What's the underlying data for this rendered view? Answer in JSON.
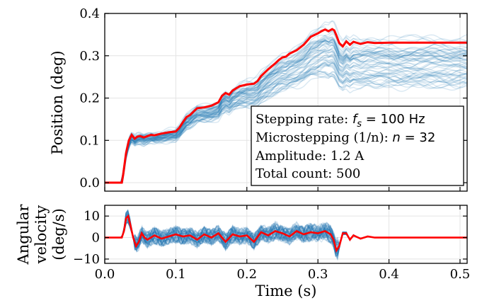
{
  "chart_data": [
    {
      "type": "line",
      "ylabel": "Position (deg)",
      "xlim": [
        0.0,
        0.51
      ],
      "ylim": [
        -0.02,
        0.4
      ],
      "yticks": [
        "0.0",
        "0.1",
        "0.2",
        "0.3",
        "0.4"
      ],
      "grid": true,
      "ensemble": {
        "color": "#1f77b4",
        "trace_count_drawn": 60,
        "final_band": [
          0.22,
          0.345
        ]
      },
      "highlight_series": {
        "color": "#ff0000",
        "x": [
          0,
          0.024,
          0.026,
          0.03,
          0.034,
          0.038,
          0.042,
          0.046,
          0.05,
          0.055,
          0.06,
          0.065,
          0.07,
          0.08,
          0.09,
          0.1,
          0.105,
          0.11,
          0.115,
          0.12,
          0.125,
          0.13,
          0.14,
          0.15,
          0.16,
          0.165,
          0.17,
          0.175,
          0.18,
          0.19,
          0.2,
          0.21,
          0.215,
          0.22,
          0.23,
          0.24,
          0.245,
          0.25,
          0.255,
          0.26,
          0.27,
          0.28,
          0.29,
          0.3,
          0.305,
          0.31,
          0.315,
          0.32,
          0.323,
          0.326,
          0.33,
          0.335,
          0.34,
          0.345,
          0.35,
          0.36,
          0.37,
          0.38,
          0.4,
          0.45,
          0.51
        ],
        "y": [
          0,
          0,
          0.02,
          0.07,
          0.1,
          0.113,
          0.104,
          0.109,
          0.11,
          0.107,
          0.11,
          0.113,
          0.112,
          0.116,
          0.119,
          0.121,
          0.13,
          0.143,
          0.155,
          0.16,
          0.168,
          0.176,
          0.178,
          0.182,
          0.19,
          0.205,
          0.212,
          0.208,
          0.218,
          0.228,
          0.232,
          0.234,
          0.24,
          0.252,
          0.268,
          0.282,
          0.29,
          0.296,
          0.298,
          0.305,
          0.313,
          0.326,
          0.345,
          0.353,
          0.358,
          0.362,
          0.358,
          0.363,
          0.36,
          0.348,
          0.33,
          0.322,
          0.334,
          0.326,
          0.333,
          0.328,
          0.332,
          0.33,
          0.331,
          0.331,
          0.331
        ]
      },
      "annotation": {
        "line1_prefix": "Stepping rate: ",
        "line1_symbol": "f",
        "line1_sub": "s",
        "line1_suffix": " = 100 Hz",
        "line2_prefix": "Microstepping (1/n): ",
        "line2_symbol": "n",
        "line2_suffix": " = 32",
        "line3": "Amplitude: 1.2 A",
        "line4": "Total count: 500"
      }
    },
    {
      "type": "line",
      "xlabel": "Time (s)",
      "ylabel_line1": "Angular",
      "ylabel_line2": "velocity",
      "ylabel_line3": "(deg/s)",
      "xlim": [
        0.0,
        0.51
      ],
      "ylim": [
        -12,
        15
      ],
      "yticks": [
        "−10",
        "0",
        "10"
      ],
      "xticks": [
        "0.0",
        "0.1",
        "0.2",
        "0.3",
        "0.4",
        "0.5"
      ],
      "grid": true,
      "ensemble": {
        "color": "#1f77b4",
        "trace_count_drawn": 60
      },
      "highlight_series": {
        "color": "#ff0000",
        "x": [
          0,
          0.024,
          0.027,
          0.03,
          0.033,
          0.036,
          0.04,
          0.044,
          0.048,
          0.052,
          0.056,
          0.06,
          0.07,
          0.08,
          0.09,
          0.1,
          0.11,
          0.12,
          0.13,
          0.14,
          0.15,
          0.16,
          0.17,
          0.18,
          0.19,
          0.2,
          0.21,
          0.22,
          0.23,
          0.24,
          0.25,
          0.26,
          0.27,
          0.28,
          0.29,
          0.3,
          0.31,
          0.318,
          0.322,
          0.326,
          0.33,
          0.335,
          0.34,
          0.345,
          0.35,
          0.36,
          0.37,
          0.38,
          0.4,
          0.45,
          0.51
        ],
        "y": [
          0,
          0,
          3,
          9,
          10,
          6,
          0,
          -4,
          -2,
          2,
          0,
          -1,
          1,
          -0.5,
          0.5,
          1.5,
          0.5,
          1,
          -1,
          1.5,
          0,
          2,
          -2,
          1.5,
          0.5,
          1,
          -2,
          2.5,
          1,
          3,
          2,
          0.5,
          3,
          1.5,
          2.5,
          2,
          3,
          1.5,
          -1,
          -6,
          -4,
          2,
          2,
          -1,
          1,
          -0.5,
          0.5,
          0,
          0,
          0,
          0
        ]
      }
    }
  ]
}
